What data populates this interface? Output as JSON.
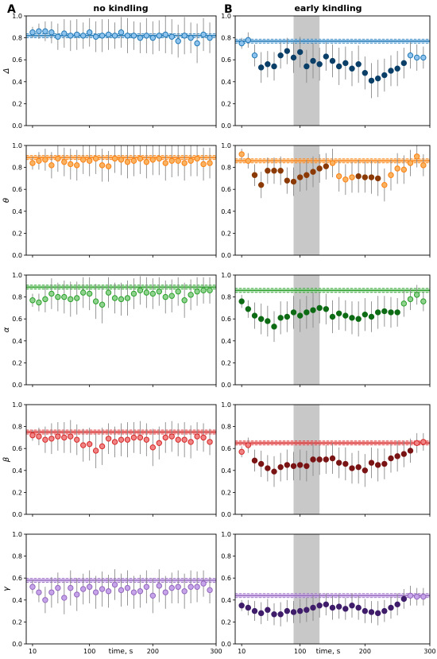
{
  "figure": {
    "panel_labels": [
      "A",
      "B"
    ],
    "column_titles": [
      "no kindling",
      "early kindling"
    ],
    "xlabel": "time, s",
    "x_ticks": [
      "10",
      "100",
      "200",
      "300"
    ],
    "y_ticks": [
      "0.0",
      "0.2",
      "0.4",
      "0.6",
      "0.8",
      "1.0"
    ],
    "row_labels": [
      "Δ",
      "θ",
      "α",
      "β",
      "γ"
    ]
  },
  "chart_data": {
    "type": "scatter",
    "xlim": [
      0,
      300
    ],
    "ylim": [
      0,
      1
    ],
    "x": [
      10,
      20,
      30,
      40,
      50,
      60,
      70,
      80,
      90,
      100,
      110,
      120,
      130,
      140,
      150,
      160,
      170,
      180,
      190,
      200,
      210,
      220,
      230,
      240,
      250,
      260,
      270,
      280,
      290
    ],
    "highlight_window_s": [
      90,
      130
    ],
    "bands": [
      {
        "band": "Δ",
        "color_light": "#8ec3ee",
        "color_dark": "#0a3f68",
        "line_color": "#1f77b4",
        "no_kindling": {
          "baseline": 0.82,
          "y": [
            0.85,
            0.86,
            0.86,
            0.85,
            0.81,
            0.84,
            0.82,
            0.83,
            0.82,
            0.85,
            0.81,
            0.82,
            0.83,
            0.82,
            0.85,
            0.82,
            0.82,
            0.8,
            0.82,
            0.8,
            0.82,
            0.83,
            0.81,
            0.77,
            0.82,
            0.8,
            0.75,
            0.83,
            0.8
          ],
          "err": [
            0.05,
            0.07,
            0.09,
            0.1,
            0.12,
            0.13,
            0.14,
            0.14,
            0.12,
            0.13,
            0.14,
            0.15,
            0.14,
            0.12,
            0.14,
            0.16,
            0.13,
            0.14,
            0.16,
            0.15,
            0.14,
            0.17,
            0.16,
            0.15,
            0.17,
            0.14,
            0.18,
            0.15,
            0.14
          ]
        },
        "early_kindling": {
          "baseline": 0.77,
          "y": [
            0.75,
            0.78,
            0.64,
            0.53,
            0.56,
            0.54,
            0.64,
            0.68,
            0.62,
            0.67,
            0.54,
            0.59,
            0.56,
            0.63,
            0.59,
            0.54,
            0.57,
            0.52,
            0.56,
            0.48,
            0.41,
            0.43,
            0.46,
            0.5,
            0.52,
            0.57,
            0.64,
            0.62,
            0.62
          ],
          "err": [
            0.05,
            0.07,
            0.1,
            0.14,
            0.12,
            0.13,
            0.12,
            0.12,
            0.14,
            0.14,
            0.15,
            0.16,
            0.15,
            0.13,
            0.15,
            0.17,
            0.15,
            0.16,
            0.17,
            0.15,
            0.16,
            0.17,
            0.15,
            0.14,
            0.16,
            0.14,
            0.12,
            0.12,
            0.1
          ],
          "outliers": [
            0,
            1,
            2,
            26,
            27,
            28
          ]
        }
      },
      {
        "band": "θ",
        "color_light": "#f7b262",
        "color_dark": "#8c3a05",
        "line_color": "#ff7f0e",
        "no_kindling": {
          "baseline": 0.89,
          "y": [
            0.84,
            0.86,
            0.87,
            0.82,
            0.88,
            0.85,
            0.83,
            0.82,
            0.87,
            0.86,
            0.88,
            0.82,
            0.81,
            0.88,
            0.87,
            0.85,
            0.86,
            0.88,
            0.85,
            0.87,
            0.88,
            0.84,
            0.86,
            0.86,
            0.84,
            0.86,
            0.88,
            0.83,
            0.84
          ],
          "err": [
            0.06,
            0.08,
            0.1,
            0.12,
            0.12,
            0.13,
            0.14,
            0.14,
            0.13,
            0.14,
            0.14,
            0.15,
            0.14,
            0.13,
            0.14,
            0.15,
            0.14,
            0.14,
            0.15,
            0.14,
            0.15,
            0.16,
            0.15,
            0.14,
            0.16,
            0.14,
            0.16,
            0.15,
            0.14
          ],
          "outliers": []
        },
        "early_kindling": {
          "baseline": 0.86,
          "y": [
            0.92,
            0.86,
            0.73,
            0.64,
            0.77,
            0.77,
            0.77,
            0.68,
            0.67,
            0.71,
            0.73,
            0.76,
            0.79,
            0.81,
            0.84,
            0.72,
            0.69,
            0.71,
            0.72,
            0.71,
            0.71,
            0.7,
            0.64,
            0.73,
            0.79,
            0.78,
            0.84,
            0.9,
            0.82
          ],
          "err": [
            0.05,
            0.07,
            0.1,
            0.12,
            0.12,
            0.12,
            0.13,
            0.12,
            0.13,
            0.13,
            0.14,
            0.14,
            0.13,
            0.12,
            0.13,
            0.14,
            0.14,
            0.14,
            0.15,
            0.14,
            0.15,
            0.16,
            0.15,
            0.14,
            0.14,
            0.13,
            0.12,
            0.1,
            0.1
          ],
          "outliers": [
            0,
            1,
            14,
            15,
            16,
            17,
            22,
            23,
            24,
            25,
            26,
            27,
            28
          ]
        }
      },
      {
        "band": "α",
        "color_light": "#8fd38f",
        "color_dark": "#0d6b14",
        "line_color": "#2ca02c",
        "no_kindling": {
          "baseline": 0.89,
          "y": [
            0.77,
            0.75,
            0.78,
            0.83,
            0.8,
            0.8,
            0.78,
            0.79,
            0.84,
            0.83,
            0.76,
            0.73,
            0.84,
            0.79,
            0.78,
            0.79,
            0.83,
            0.86,
            0.84,
            0.83,
            0.85,
            0.8,
            0.81,
            0.85,
            0.77,
            0.82,
            0.85,
            0.86,
            0.86
          ],
          "err": [
            0.06,
            0.08,
            0.12,
            0.14,
            0.13,
            0.15,
            0.16,
            0.15,
            0.14,
            0.15,
            0.16,
            0.17,
            0.14,
            0.14,
            0.15,
            0.16,
            0.14,
            0.13,
            0.14,
            0.14,
            0.13,
            0.15,
            0.15,
            0.13,
            0.16,
            0.14,
            0.13,
            0.12,
            0.12
          ],
          "outliers": []
        },
        "early_kindling": {
          "baseline": 0.86,
          "y": [
            0.76,
            0.69,
            0.63,
            0.6,
            0.58,
            0.53,
            0.61,
            0.62,
            0.66,
            0.63,
            0.66,
            0.68,
            0.7,
            0.69,
            0.62,
            0.65,
            0.63,
            0.61,
            0.6,
            0.64,
            0.62,
            0.66,
            0.67,
            0.66,
            0.66,
            0.74,
            0.78,
            0.82,
            0.76
          ],
          "err": [
            0.06,
            0.08,
            0.12,
            0.14,
            0.14,
            0.14,
            0.15,
            0.14,
            0.15,
            0.15,
            0.15,
            0.16,
            0.14,
            0.14,
            0.15,
            0.15,
            0.14,
            0.15,
            0.16,
            0.15,
            0.14,
            0.15,
            0.14,
            0.14,
            0.13,
            0.12,
            0.1,
            0.09,
            0.09
          ],
          "outliers": [
            25,
            26,
            27,
            28
          ]
        }
      },
      {
        "band": "β",
        "color_light": "#f08484",
        "color_dark": "#7a1414",
        "line_color": "#d62728",
        "no_kindling": {
          "baseline": 0.75,
          "y": [
            0.72,
            0.71,
            0.68,
            0.69,
            0.71,
            0.7,
            0.71,
            0.68,
            0.63,
            0.64,
            0.58,
            0.62,
            0.69,
            0.66,
            0.68,
            0.68,
            0.7,
            0.7,
            0.68,
            0.61,
            0.65,
            0.7,
            0.71,
            0.68,
            0.68,
            0.66,
            0.71,
            0.7,
            0.66
          ],
          "err": [
            0.05,
            0.08,
            0.12,
            0.14,
            0.13,
            0.14,
            0.15,
            0.14,
            0.15,
            0.15,
            0.16,
            0.17,
            0.14,
            0.14,
            0.15,
            0.16,
            0.14,
            0.15,
            0.15,
            0.17,
            0.15,
            0.14,
            0.14,
            0.15,
            0.16,
            0.15,
            0.13,
            0.13,
            0.12
          ],
          "outliers": []
        },
        "early_kindling": {
          "baseline": 0.65,
          "y": [
            0.57,
            0.63,
            0.49,
            0.46,
            0.42,
            0.39,
            0.43,
            0.45,
            0.44,
            0.45,
            0.44,
            0.5,
            0.5,
            0.5,
            0.51,
            0.47,
            0.46,
            0.42,
            0.43,
            0.4,
            0.47,
            0.45,
            0.46,
            0.51,
            0.53,
            0.55,
            0.58,
            0.65,
            0.66
          ],
          "err": [
            0.05,
            0.07,
            0.1,
            0.12,
            0.12,
            0.14,
            0.13,
            0.14,
            0.13,
            0.14,
            0.14,
            0.15,
            0.14,
            0.13,
            0.14,
            0.14,
            0.15,
            0.14,
            0.15,
            0.15,
            0.14,
            0.15,
            0.14,
            0.13,
            0.14,
            0.12,
            0.11,
            0.09,
            0.08
          ],
          "outliers": [
            0,
            1,
            27,
            28
          ]
        }
      },
      {
        "band": "γ",
        "color_light": "#c6a4ea",
        "color_dark": "#3f1d6a",
        "line_color": "#9467bd",
        "no_kindling": {
          "baseline": 0.58,
          "y": [
            0.52,
            0.47,
            0.4,
            0.47,
            0.51,
            0.42,
            0.51,
            0.45,
            0.5,
            0.52,
            0.47,
            0.5,
            0.48,
            0.54,
            0.49,
            0.51,
            0.47,
            0.48,
            0.52,
            0.44,
            0.53,
            0.47,
            0.51,
            0.52,
            0.48,
            0.52,
            0.52,
            0.55,
            0.49
          ],
          "err": [
            0.06,
            0.09,
            0.12,
            0.14,
            0.14,
            0.15,
            0.16,
            0.15,
            0.14,
            0.15,
            0.15,
            0.16,
            0.15,
            0.14,
            0.15,
            0.16,
            0.15,
            0.15,
            0.15,
            0.16,
            0.15,
            0.15,
            0.14,
            0.15,
            0.16,
            0.15,
            0.14,
            0.12,
            0.12
          ],
          "outliers": []
        },
        "early_kindling": {
          "baseline": 0.44,
          "y": [
            0.35,
            0.33,
            0.3,
            0.28,
            0.31,
            0.27,
            0.27,
            0.3,
            0.29,
            0.3,
            0.31,
            0.33,
            0.35,
            0.36,
            0.33,
            0.34,
            0.32,
            0.35,
            0.33,
            0.3,
            0.29,
            0.28,
            0.3,
            0.33,
            0.36,
            0.41,
            0.44,
            0.43,
            0.43
          ],
          "err": [
            0.05,
            0.07,
            0.09,
            0.1,
            0.1,
            0.1,
            0.11,
            0.1,
            0.1,
            0.11,
            0.11,
            0.12,
            0.11,
            0.1,
            0.11,
            0.11,
            0.1,
            0.11,
            0.11,
            0.11,
            0.1,
            0.11,
            0.1,
            0.1,
            0.1,
            0.09,
            0.09,
            0.08,
            0.08
          ],
          "outliers": [
            26,
            27,
            28
          ]
        }
      }
    ]
  }
}
